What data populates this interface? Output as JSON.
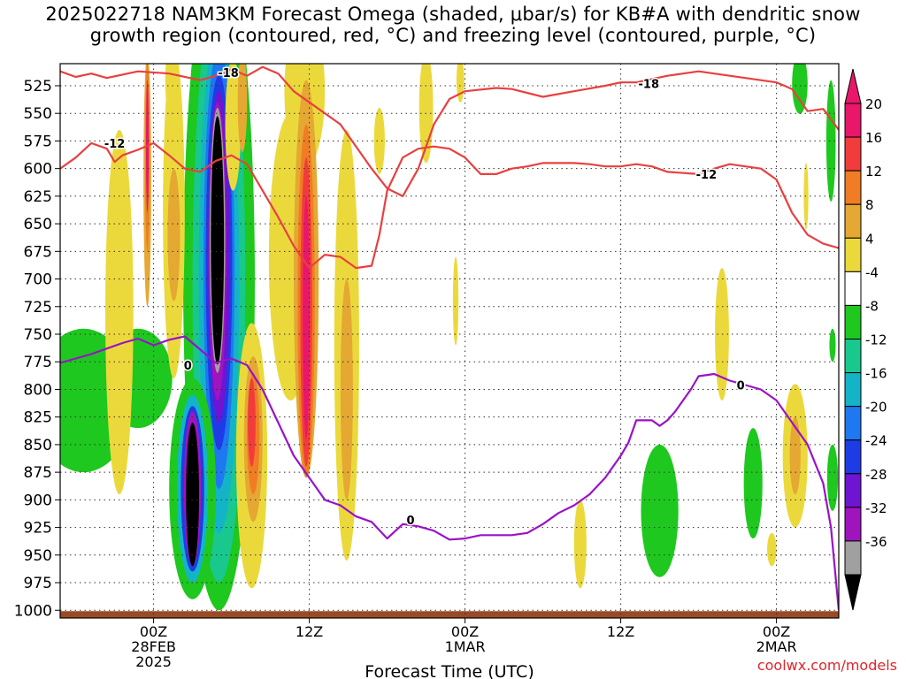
{
  "header": {
    "title_line1": "2025022718 NAM3KM Forecast Omega (shaded, μbar/s) for KB#A with dendritic snow",
    "title_line2": "growth region (contoured, red, °C) and freezing level (contoured, purple, °C)"
  },
  "footer": {
    "credit": "coolwx.com/models"
  },
  "chart_data": {
    "type": "heatmap",
    "title": "2025022718 NAM3KM Forecast Omega (shaded, μbar/s) for KB#A with dendritic snow growth region (contoured, red, °C) and freezing level (contoured, purple, °C)",
    "xlabel": "Forecast Time (UTC)",
    "ylabel": "",
    "y_axis": {
      "ticks": [
        525,
        550,
        575,
        600,
        625,
        650,
        675,
        700,
        725,
        750,
        775,
        800,
        825,
        850,
        875,
        900,
        925,
        950,
        975,
        1000
      ],
      "range": [
        505,
        1007
      ],
      "direction": "inverted"
    },
    "x_axis": {
      "range_hours": [
        -6,
        44
      ],
      "ticks": [
        {
          "hour": 0,
          "label": "00Z",
          "sublabel1": "28FEB",
          "sublabel2": "2025"
        },
        {
          "hour": 10,
          "label": "12Z",
          "sublabel1": "",
          "sublabel2": ""
        },
        {
          "hour": 20,
          "label": "00Z",
          "sublabel1": "1MAR",
          "sublabel2": ""
        },
        {
          "hour": 30,
          "label": "12Z",
          "sublabel1": "",
          "sublabel2": ""
        },
        {
          "hour": 40,
          "label": "00Z",
          "sublabel1": "2MAR",
          "sublabel2": ""
        }
      ]
    },
    "grid": true,
    "colorbar": {
      "units": "μbar/s",
      "bins": [
        {
          "label": "20",
          "color": "#e8176a"
        },
        {
          "label": "16",
          "color": "#f23c3c"
        },
        {
          "label": "12",
          "color": "#f07d24"
        },
        {
          "label": "8",
          "color": "#e5a832"
        },
        {
          "label": "4",
          "color": "#ebd93c"
        },
        {
          "label": "-4",
          "color": "#ffffff"
        },
        {
          "label": "-8",
          "color": "#1ec81e"
        },
        {
          "label": "-12",
          "color": "#18c88c"
        },
        {
          "label": "-16",
          "color": "#14b4c8"
        },
        {
          "label": "-20",
          "color": "#1e78f0"
        },
        {
          "label": "-24",
          "color": "#1e3ce6"
        },
        {
          "label": "-28",
          "color": "#6e14d2"
        },
        {
          "label": "-32",
          "color": "#a014be"
        },
        {
          "label": "-36",
          "color": "#a0a0a0"
        }
      ],
      "low_end_color": "#000000",
      "high_end_color": "#e8176a"
    },
    "contours": [
      {
        "level": -18,
        "color": "#e84040",
        "label": "-18",
        "points": [
          [
            -6,
            512
          ],
          [
            -5,
            517
          ],
          [
            -4,
            514
          ],
          [
            -3,
            518
          ],
          [
            -1,
            512
          ],
          [
            1,
            514
          ],
          [
            3,
            520
          ],
          [
            4,
            516
          ],
          [
            5,
            510
          ],
          [
            6,
            516
          ],
          [
            7,
            508
          ],
          [
            8,
            514
          ],
          [
            9,
            530
          ],
          [
            10,
            540
          ],
          [
            11,
            550
          ],
          [
            12,
            560
          ],
          [
            13,
            580
          ],
          [
            14,
            600
          ],
          [
            15,
            618
          ],
          [
            16,
            625
          ],
          [
            17,
            600
          ],
          [
            18,
            560
          ],
          [
            19,
            537
          ],
          [
            20,
            530
          ],
          [
            22,
            527
          ],
          [
            23,
            528
          ],
          [
            25,
            535
          ],
          [
            27,
            530
          ],
          [
            29,
            525
          ],
          [
            30,
            522
          ],
          [
            31,
            522
          ],
          [
            33,
            516
          ],
          [
            35,
            512
          ],
          [
            38,
            518
          ],
          [
            40,
            522
          ],
          [
            41,
            528
          ],
          [
            42,
            548
          ],
          [
            43,
            546
          ],
          [
            44,
            565
          ]
        ],
        "labels": [
          [
            4.8,
            513,
            "-18"
          ],
          [
            31.8,
            523,
            "-18"
          ]
        ]
      },
      {
        "level": -12,
        "color": "#e84040",
        "label": "-12",
        "points": [
          [
            -6,
            600
          ],
          [
            -5,
            590
          ],
          [
            -4,
            577
          ],
          [
            -3,
            582
          ],
          [
            -2.5,
            594
          ],
          [
            -2,
            588
          ],
          [
            -1,
            583
          ],
          [
            0,
            577
          ],
          [
            1,
            588
          ],
          [
            2,
            600
          ],
          [
            3,
            603
          ],
          [
            4,
            593
          ],
          [
            5,
            588
          ],
          [
            6,
            596
          ],
          [
            7,
            620
          ],
          [
            8,
            644
          ],
          [
            9,
            670
          ],
          [
            10,
            690
          ],
          [
            11,
            678
          ],
          [
            12,
            680
          ],
          [
            13,
            690
          ],
          [
            14,
            688
          ],
          [
            14.5,
            660
          ],
          [
            15,
            620
          ],
          [
            16,
            590
          ],
          [
            17,
            582
          ],
          [
            18,
            580
          ],
          [
            19,
            582
          ],
          [
            20,
            590
          ],
          [
            21,
            605
          ],
          [
            22,
            605
          ],
          [
            23,
            600
          ],
          [
            24,
            598
          ],
          [
            25,
            595
          ],
          [
            27,
            595
          ],
          [
            28,
            596
          ],
          [
            29,
            598
          ],
          [
            30,
            598
          ],
          [
            31,
            596
          ],
          [
            32,
            598
          ],
          [
            33,
            603
          ],
          [
            35,
            605
          ],
          [
            36,
            600
          ],
          [
            37,
            596
          ],
          [
            38,
            598
          ],
          [
            39,
            600
          ],
          [
            40,
            610
          ],
          [
            41,
            640
          ],
          [
            42,
            660
          ],
          [
            43,
            668
          ],
          [
            44,
            672
          ]
        ],
        "labels": [
          [
            -2.5,
            577,
            "-12"
          ],
          [
            35.5,
            605,
            "-12"
          ]
        ]
      },
      {
        "level": 0,
        "color": "#9a12c8",
        "label": "0",
        "points": [
          [
            -6,
            776
          ],
          [
            -4,
            768
          ],
          [
            -2,
            758
          ],
          [
            -1,
            754
          ],
          [
            0,
            760
          ],
          [
            1,
            755
          ],
          [
            2,
            752
          ],
          [
            3,
            764
          ],
          [
            4,
            776
          ],
          [
            5,
            772
          ],
          [
            6,
            778
          ],
          [
            7,
            800
          ],
          [
            8,
            830
          ],
          [
            9,
            860
          ],
          [
            10,
            880
          ],
          [
            11,
            900
          ],
          [
            12,
            905
          ],
          [
            13,
            915
          ],
          [
            14,
            920
          ],
          [
            15,
            935
          ],
          [
            16,
            922
          ],
          [
            17,
            924
          ],
          [
            18,
            928
          ],
          [
            19,
            936
          ],
          [
            20,
            935
          ],
          [
            21,
            932
          ],
          [
            22,
            932
          ],
          [
            23,
            932
          ],
          [
            24,
            930
          ],
          [
            25,
            922
          ],
          [
            26,
            912
          ],
          [
            27,
            905
          ],
          [
            28,
            895
          ],
          [
            29,
            880
          ],
          [
            30,
            860
          ],
          [
            30.5,
            848
          ],
          [
            31,
            828
          ],
          [
            32,
            828
          ],
          [
            32.5,
            833
          ],
          [
            33,
            828
          ],
          [
            33.5,
            820
          ],
          [
            34,
            810
          ],
          [
            34.5,
            800
          ],
          [
            35,
            788
          ],
          [
            36,
            786
          ],
          [
            37,
            792
          ],
          [
            38,
            796
          ],
          [
            39,
            800
          ],
          [
            40,
            810
          ],
          [
            41,
            830
          ],
          [
            42,
            850
          ],
          [
            43,
            885
          ],
          [
            43.5,
            925
          ],
          [
            44,
            1000
          ]
        ],
        "labels": [
          [
            2.2,
            778,
            "0"
          ],
          [
            16.5,
            918,
            "0"
          ],
          [
            37.7,
            796,
            "0"
          ]
        ]
      }
    ]
  }
}
